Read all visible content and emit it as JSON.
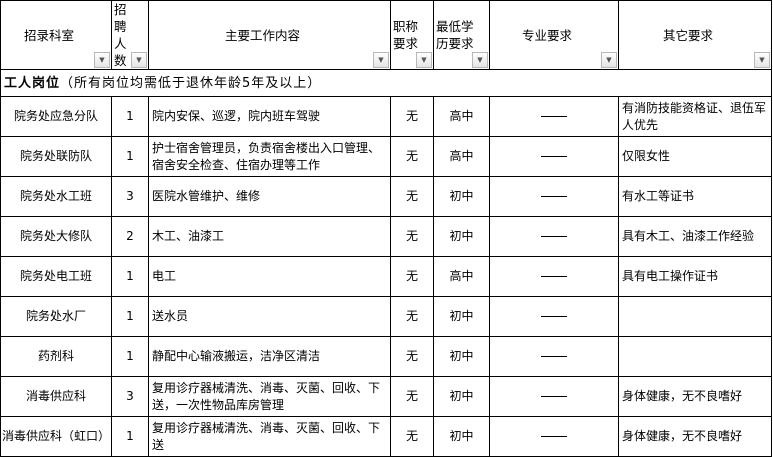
{
  "headers": [
    "招录科室",
    "招聘人数",
    "主要工作内容",
    "职称要求",
    "最低学历要求",
    "专业要求",
    "其它要求"
  ],
  "section": {
    "title": "工人岗位",
    "note": "（所有岗位均需低于退休年龄5年及以上）"
  },
  "rows": [
    {
      "dept": "院务处应急分队",
      "count": "1",
      "content": "院内安保、巡逻，院内班车驾驶",
      "title": "无",
      "edu": "高中",
      "major": "——",
      "other": "有消防技能资格证、退伍军人优先"
    },
    {
      "dept": "院务处联防队",
      "count": "1",
      "content": "护士宿舍管理员，负责宿舍楼出入口管理、宿舍安全检查、住宿办理等工作",
      "title": "无",
      "edu": "高中",
      "major": "——",
      "other": "仅限女性"
    },
    {
      "dept": "院务处水工班",
      "count": "3",
      "content": "医院水管维护、维修",
      "title": "无",
      "edu": "初中",
      "major": "——",
      "other": "有水工等证书"
    },
    {
      "dept": "院务处大修队",
      "count": "2",
      "content": "木工、油漆工",
      "title": "无",
      "edu": "初中",
      "major": "——",
      "other": "具有木工、油漆工作经验"
    },
    {
      "dept": "院务处电工班",
      "count": "1",
      "content": "电工",
      "title": "无",
      "edu": "高中",
      "major": "——",
      "other": "具有电工操作证书"
    },
    {
      "dept": "院务处水厂",
      "count": "1",
      "content": "送水员",
      "title": "无",
      "edu": "初中",
      "major": "——",
      "other": ""
    },
    {
      "dept": "药剂科",
      "count": "1",
      "content": "静配中心输液搬运，洁净区清洁",
      "title": "无",
      "edu": "初中",
      "major": "——",
      "other": ""
    },
    {
      "dept": "消毒供应科",
      "count": "3",
      "content": "复用诊疗器械清洗、消毒、灭菌、回收、下送，一次性物品库房管理",
      "title": "无",
      "edu": "初中",
      "major": "——",
      "other": "身体健康，无不良嗜好"
    },
    {
      "dept": "消毒供应科（虹口）",
      "count": "1",
      "content": "复用诊疗器械清洗、消毒、灭菌、回收、下送",
      "title": "无",
      "edu": "初中",
      "major": "——",
      "other": "身体健康，无不良嗜好"
    }
  ]
}
